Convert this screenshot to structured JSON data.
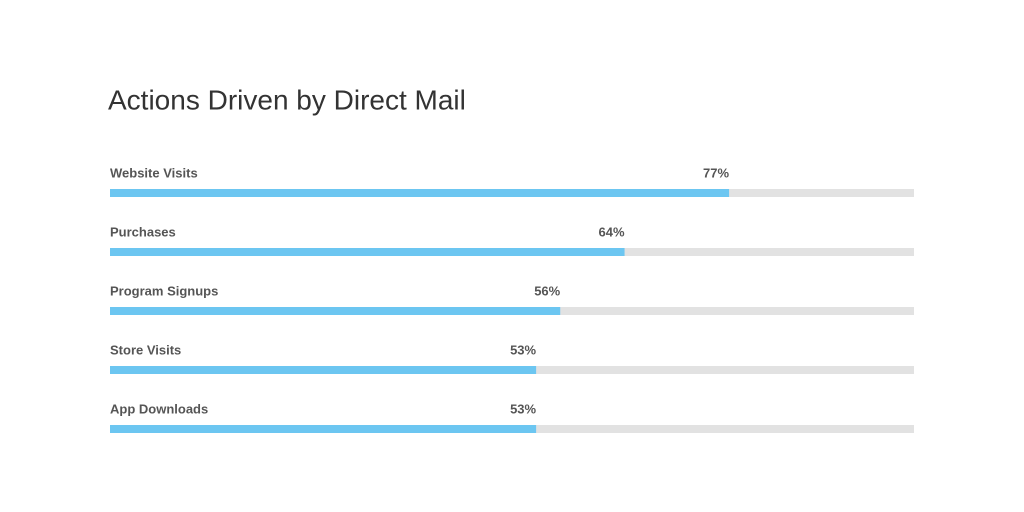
{
  "chart_data": {
    "type": "progress-bar",
    "title": "Actions Driven by Direct Mail",
    "categories": [
      "Website Visits",
      "Purchases",
      "Program Signups",
      "Store Visits",
      "App Downloads"
    ],
    "values": [
      77,
      64,
      56,
      53,
      53
    ],
    "value_labels": [
      "77%",
      "64%",
      "56%",
      "53%",
      "53%"
    ],
    "color": "#6cc6f1",
    "track_color": "#e2e2e2",
    "xlim": [
      0,
      100
    ]
  }
}
